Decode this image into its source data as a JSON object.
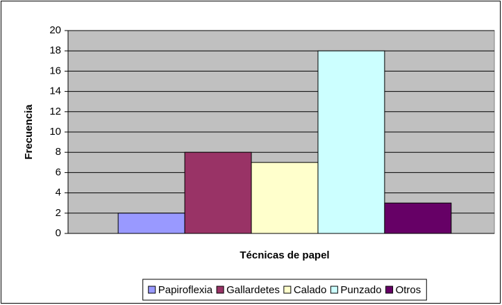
{
  "chart_data": {
    "type": "bar",
    "x_label": "Técnicas de papel",
    "y_label": "Frecuencia",
    "categories": [
      null
    ],
    "series": [
      {
        "name": "Papiroflexia",
        "color": "#9999ff",
        "values": [
          2
        ]
      },
      {
        "name": "Gallardetes",
        "color": "#993366",
        "values": [
          8
        ]
      },
      {
        "name": "Calado",
        "color": "#ffffcc",
        "values": [
          7
        ]
      },
      {
        "name": "Punzado",
        "color": "#ccffff",
        "values": [
          18
        ]
      },
      {
        "name": "Otros",
        "color": "#660066",
        "values": [
          3
        ]
      }
    ],
    "ylim": [
      0,
      20
    ],
    "yticks": [
      0,
      2,
      4,
      6,
      8,
      10,
      12,
      14,
      16,
      18,
      20
    ],
    "grid": true,
    "plot_background": "#c0c0c0",
    "legend": "bottom"
  }
}
